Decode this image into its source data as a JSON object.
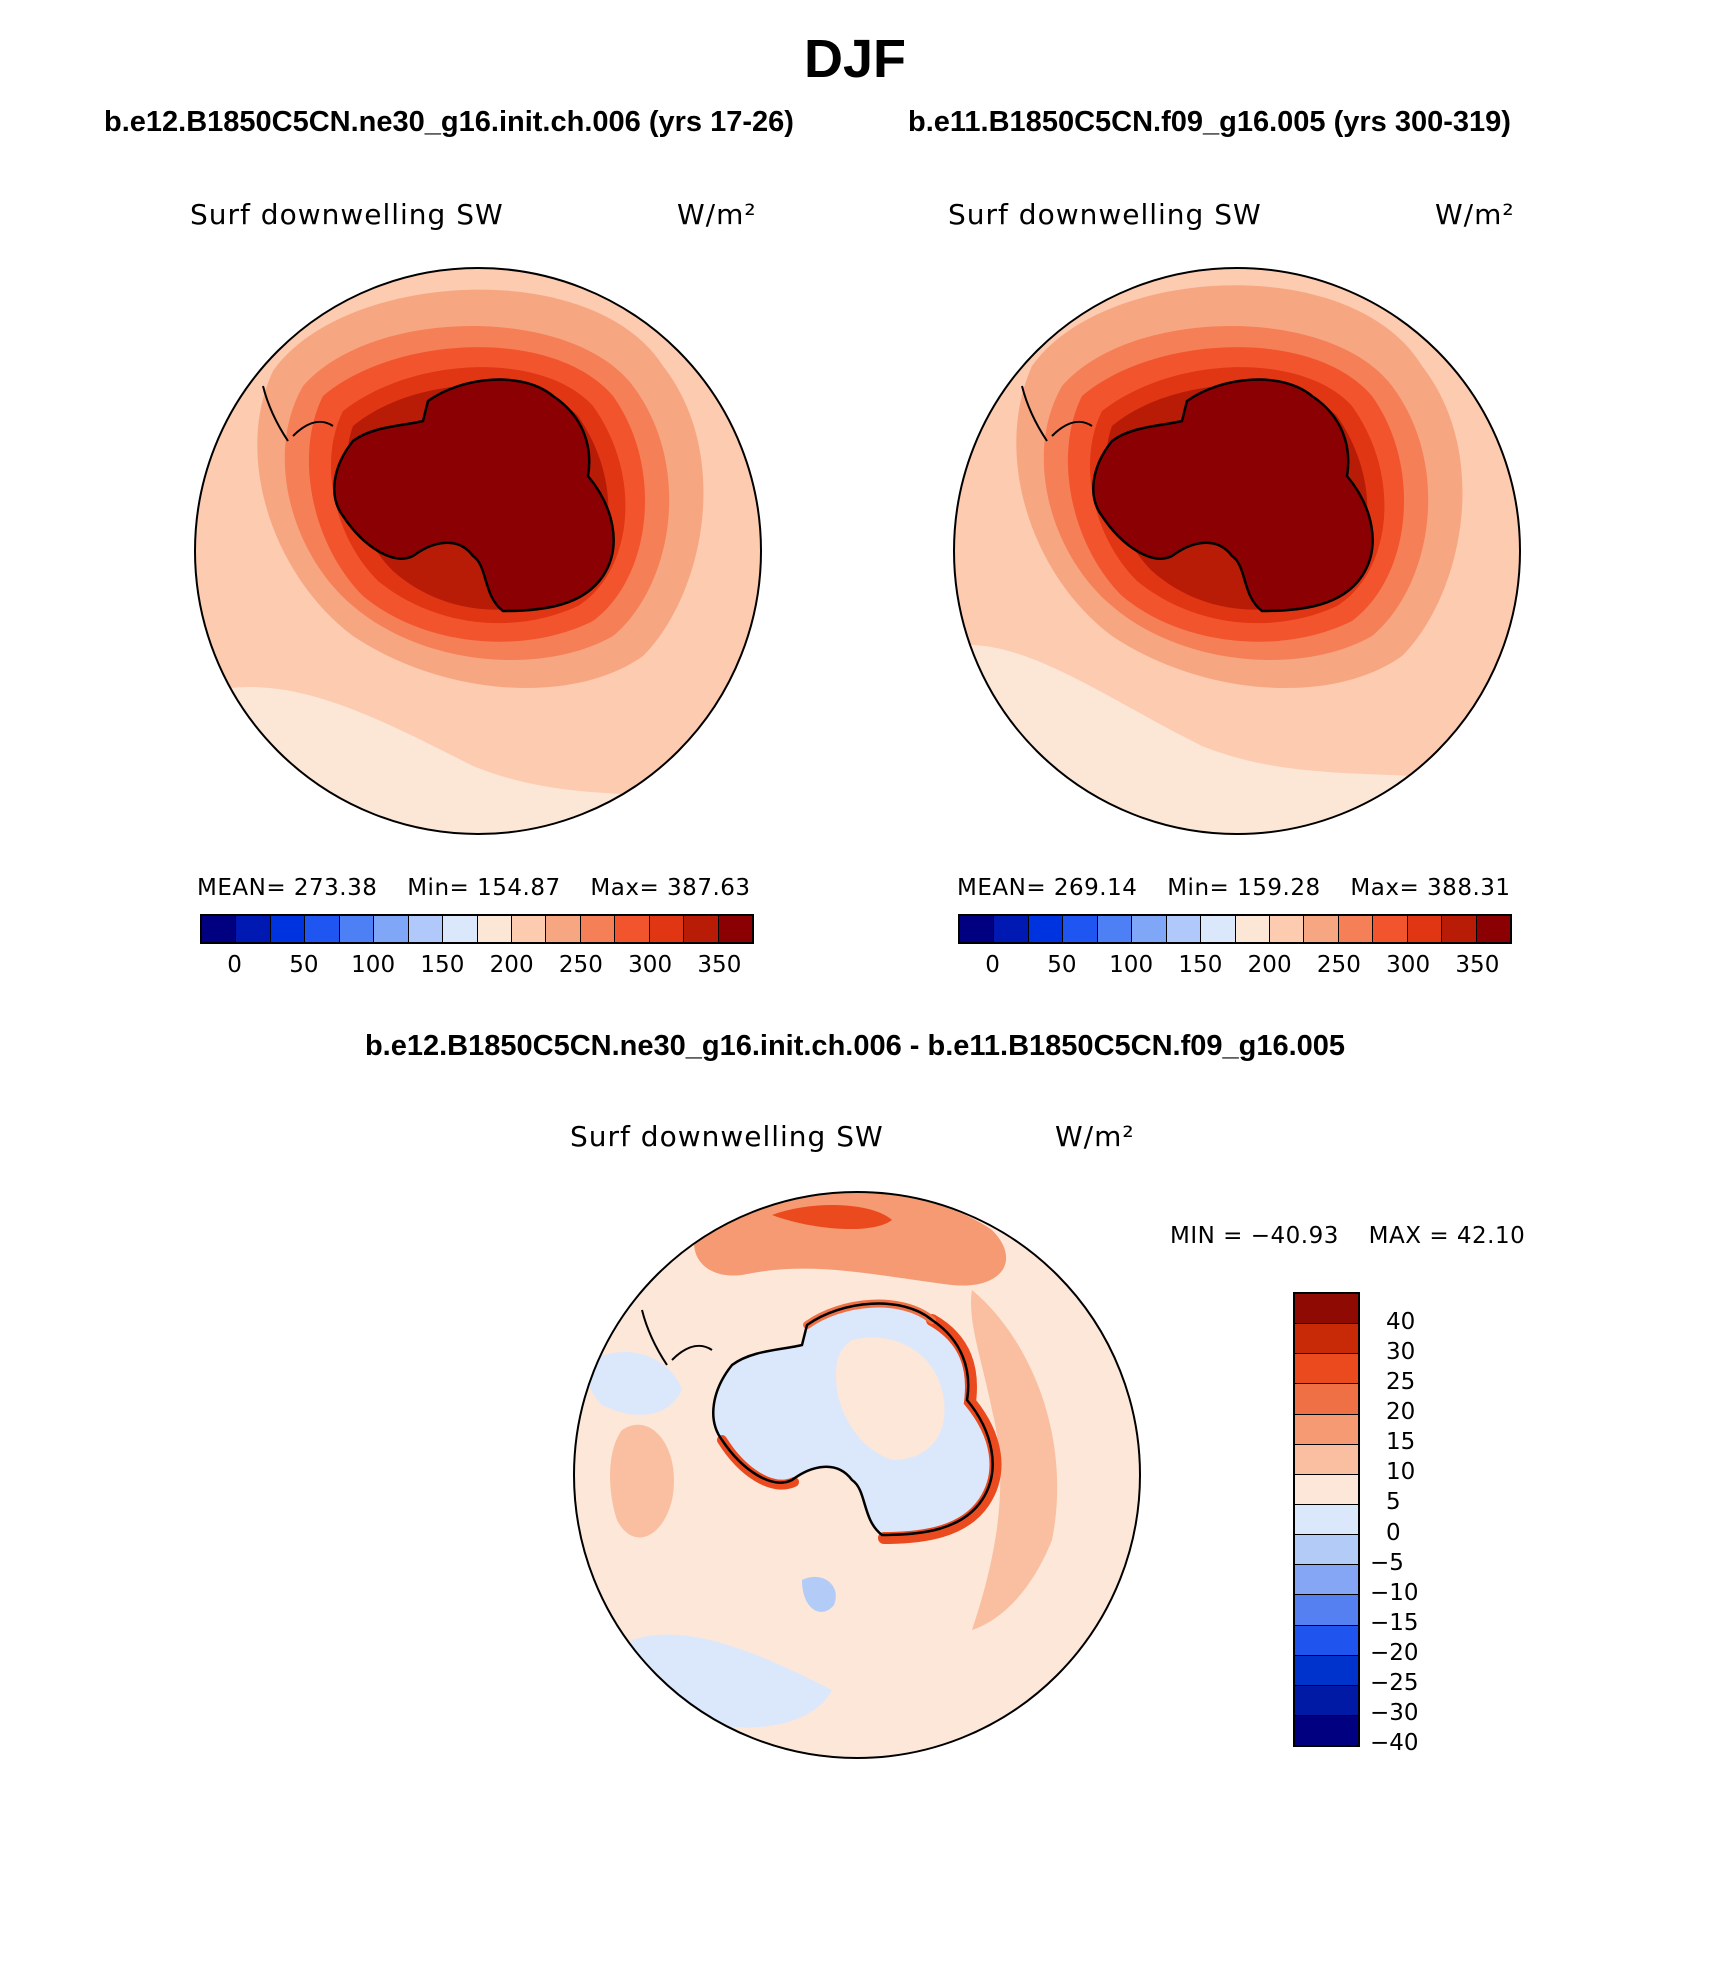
{
  "page_title": "DJF",
  "colors": {
    "abs_scale": [
      "#000080",
      "#0019b3",
      "#0033e0",
      "#1f55f0",
      "#4d7ff5",
      "#80a6f7",
      "#b0c9fa",
      "#dbe8fc",
      "#fce6d6",
      "#fccbb0",
      "#f7a682",
      "#f57f56",
      "#f2552e",
      "#e03614",
      "#b81c07",
      "#8a0003"
    ],
    "diff_scale": [
      "#000080",
      "#001aa6",
      "#0033cc",
      "#1f55ee",
      "#5580f2",
      "#85a6f5",
      "#b3cbf7",
      "#dbe8fc",
      "#fce7d9",
      "#f9bfa0",
      "#f59a72",
      "#f07045",
      "#ea4a1e",
      "#c82a08",
      "#8f0a02"
    ],
    "land_outline": "#000000"
  },
  "top_left": {
    "case_name": "b.e12.B1850C5CN.ne30_g16.init.ch.006 (yrs 17-26)",
    "variable": "Surf downwelling SW",
    "units": "W/m²",
    "mean_label": "MEAN=",
    "mean_value": "273.38",
    "min_label": "Min=",
    "min_value": "154.87",
    "max_label": "Max=",
    "max_value": "387.63"
  },
  "top_right": {
    "case_name": "b.e11.B1850C5CN.f09_g16.005 (yrs 300-319)",
    "variable": "Surf downwelling SW",
    "units": "W/m²",
    "mean_label": "MEAN=",
    "mean_value": "269.14",
    "min_label": "Min=",
    "min_value": "159.28",
    "max_label": "Max=",
    "max_value": "388.31"
  },
  "abs_ticks": [
    "0",
    "50",
    "100",
    "150",
    "200",
    "250",
    "300",
    "350"
  ],
  "difference": {
    "title": "b.e12.B1850C5CN.ne30_g16.init.ch.006 - b.e11.B1850C5CN.f09_g16.005",
    "variable": "Surf downwelling SW",
    "units": "W/m²",
    "min_label": "MIN =",
    "min_value": "−40.93",
    "max_label": "MAX =",
    "max_value": "42.10",
    "ticks": [
      "40",
      "30",
      "25",
      "20",
      "15",
      "10",
      "5",
      "0",
      "−5",
      "−10",
      "−15",
      "−20",
      "−25",
      "−30",
      "−40"
    ]
  }
}
